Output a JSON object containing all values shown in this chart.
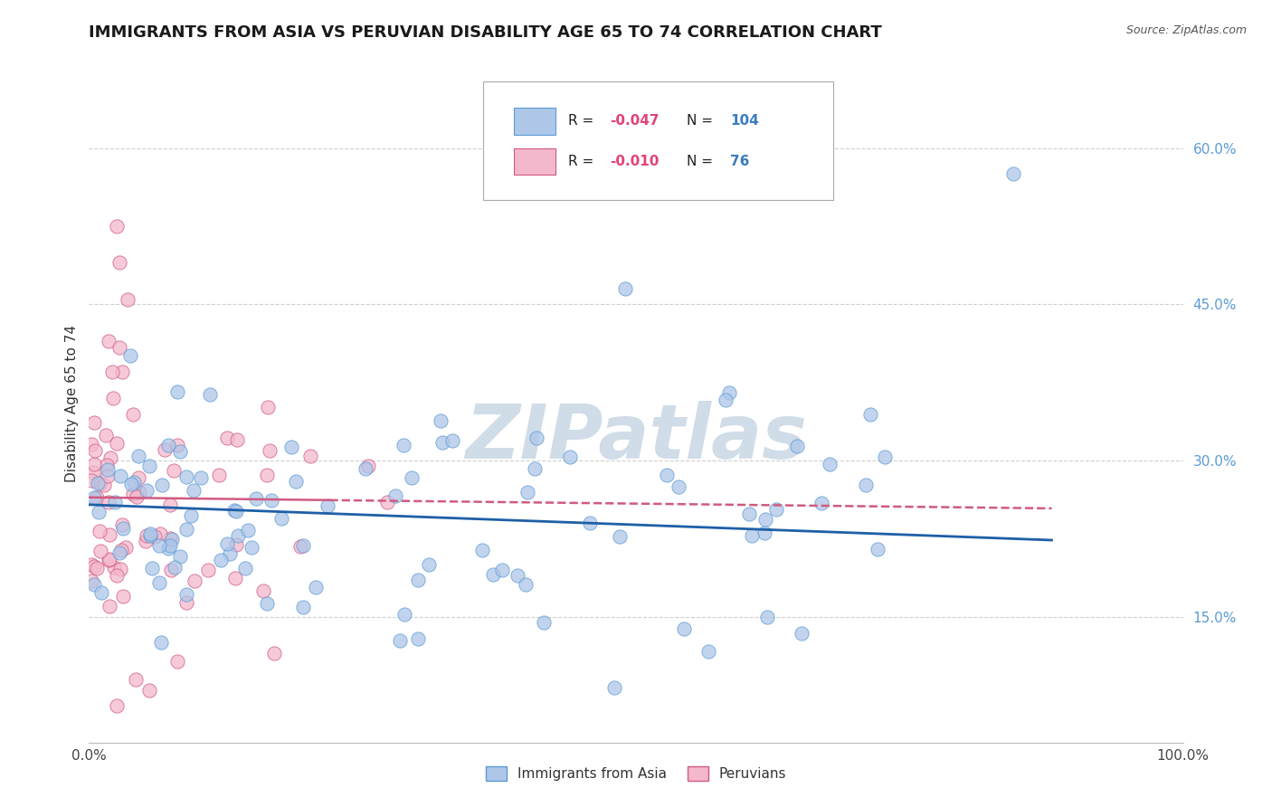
{
  "title": "IMMIGRANTS FROM ASIA VS PERUVIAN DISABILITY AGE 65 TO 74 CORRELATION CHART",
  "source": "Source: ZipAtlas.com",
  "ylabel": "Disability Age 65 to 74",
  "xlim": [
    0.0,
    1.0
  ],
  "ylim": [
    0.03,
    0.68
  ],
  "xtick_labels": [
    "0.0%",
    "100.0%"
  ],
  "ytick_labels": [
    "15.0%",
    "30.0%",
    "45.0%",
    "60.0%"
  ],
  "ytick_values": [
    0.15,
    0.3,
    0.45,
    0.6
  ],
  "blue_color": "#aec6e8",
  "blue_edge_color": "#5b9bd5",
  "pink_color": "#f4b8cc",
  "pink_edge_color": "#d05a80",
  "blue_line_color": "#1f5fa6",
  "pink_line_color": "#d05a80",
  "grid_color": "#bbbbbb",
  "background_color": "#ffffff",
  "title_fontsize": 13,
  "axis_label_fontsize": 11,
  "tick_fontsize": 11,
  "watermark_color": "#d0dce8",
  "watermark_fontsize": 60
}
